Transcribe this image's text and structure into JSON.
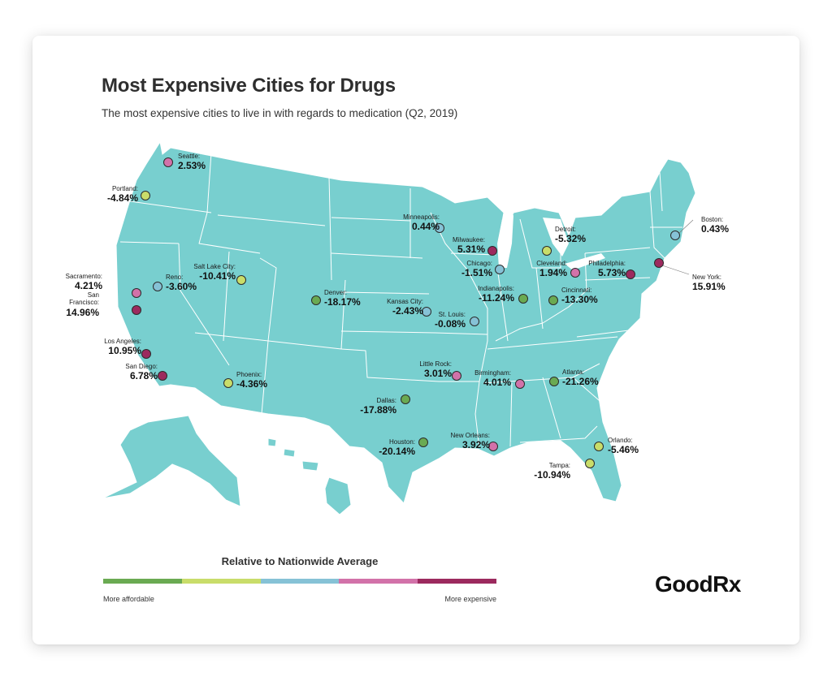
{
  "header": {
    "title": "Most Expensive Cities for Drugs",
    "subtitle": "The most expensive cities to live in with regards to medication (Q2, 2019)"
  },
  "colors": {
    "land": "#78CFCF",
    "border": "#ffffff",
    "tier1": "#6AAA52",
    "tier2": "#C9DD6A",
    "tier3": "#86C2D6",
    "tier4": "#D272A9",
    "tier5": "#9C2A5E"
  },
  "legend": {
    "title": "Relative to Nationwide Average",
    "left_label": "More affordable",
    "right_label": "More expensive"
  },
  "logo": {
    "text": "GoodRx"
  },
  "cities": [
    {
      "name": "Seattle:",
      "value": "2.53%",
      "tier": "tier4"
    },
    {
      "name": "Portland:",
      "value": "-4.84%",
      "tier": "tier2"
    },
    {
      "name": "Sacramento:",
      "value": "4.21%",
      "tier": "tier4"
    },
    {
      "name": "San",
      "name2": "Francisco:",
      "value": "14.96%",
      "tier": "tier5"
    },
    {
      "name": "Los Angeles:",
      "value": "10.95%",
      "tier": "tier5"
    },
    {
      "name": "San Diego:",
      "value": "6.78%",
      "tier": "tier5"
    },
    {
      "name": "Reno:",
      "value": "-3.60%",
      "tier": "tier3"
    },
    {
      "name": "Salt Lake City:",
      "value": "-10.41%",
      "tier": "tier2"
    },
    {
      "name": "Phoenix:",
      "value": "-4.36%",
      "tier": "tier2"
    },
    {
      "name": "Denver:",
      "value": "-18.17%",
      "tier": "tier1"
    },
    {
      "name": "Dallas:",
      "value": "-17.88%",
      "tier": "tier1"
    },
    {
      "name": "Houston:",
      "value": "-20.14%",
      "tier": "tier1"
    },
    {
      "name": "Kansas City:",
      "value": "-2.43%",
      "tier": "tier3"
    },
    {
      "name": "St. Louis:",
      "value": "-0.08%",
      "tier": "tier3"
    },
    {
      "name": "Minneapolis:",
      "value": "0.44%",
      "tier": "tier3"
    },
    {
      "name": "Milwaukee:",
      "value": "5.31%",
      "tier": "tier5"
    },
    {
      "name": "Chicago:",
      "value": "-1.51%",
      "tier": "tier3"
    },
    {
      "name": "Detroit:",
      "value": "-5.32%",
      "tier": "tier2"
    },
    {
      "name": "Cleveland:",
      "value": "1.94%",
      "tier": "tier4"
    },
    {
      "name": "Indianapolis:",
      "value": "-11.24%",
      "tier": "tier1"
    },
    {
      "name": "Cincinnati:",
      "value": "-13.30%",
      "tier": "tier1"
    },
    {
      "name": "Little Rock:",
      "value": "3.01%",
      "tier": "tier4"
    },
    {
      "name": "Birmingham:",
      "value": "4.01%",
      "tier": "tier4"
    },
    {
      "name": "Atlanta:",
      "value": "-21.26%",
      "tier": "tier1"
    },
    {
      "name": "New Orleans:",
      "value": "3.92%",
      "tier": "tier4"
    },
    {
      "name": "Orlando:",
      "value": "-5.46%",
      "tier": "tier2"
    },
    {
      "name": "Tampa:",
      "value": "-10.94%",
      "tier": "tier2"
    },
    {
      "name": "Philadelphia:",
      "value": "5.73%",
      "tier": "tier5"
    },
    {
      "name": "New York:",
      "value": "15.91%",
      "tier": "tier5"
    },
    {
      "name": "Boston:",
      "value": "0.43%",
      "tier": "tier3"
    }
  ]
}
